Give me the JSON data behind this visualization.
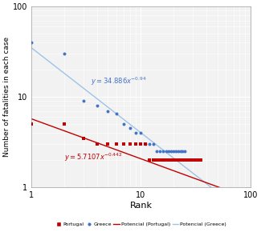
{
  "title": "",
  "xlabel": "Rank",
  "ylabel": "Number of fatalities in each case",
  "xlim": [
    1,
    100
  ],
  "ylim": [
    1,
    100
  ],
  "portugal_x": [
    1,
    2,
    3,
    4,
    5,
    6,
    7,
    8,
    9,
    10,
    11,
    12,
    13,
    14,
    15,
    16,
    17,
    18,
    19,
    20,
    21,
    22,
    23,
    24,
    25,
    26,
    27,
    28,
    29,
    30,
    31,
    32,
    33,
    34,
    35
  ],
  "portugal_y": [
    5,
    5,
    3.5,
    3,
    3,
    3,
    3,
    3,
    3,
    3,
    3,
    2,
    2,
    2,
    2,
    2,
    2,
    2,
    2,
    2,
    2,
    2,
    2,
    2,
    2,
    2,
    2,
    2,
    2,
    2,
    2,
    2,
    2,
    2,
    2
  ],
  "greece_x": [
    1,
    2,
    3,
    4,
    5,
    6,
    7,
    8,
    9,
    10,
    11,
    12,
    13,
    14,
    15,
    16,
    17,
    18,
    19,
    20,
    21,
    22,
    23,
    24,
    25
  ],
  "greece_y": [
    40,
    30,
    9,
    8,
    7,
    6.5,
    5,
    4.5,
    4,
    4,
    3,
    3,
    3,
    2.5,
    2.5,
    2.5,
    2.5,
    2.5,
    2.5,
    2.5,
    2.5,
    2.5,
    2.5,
    2.5,
    2.5
  ],
  "pot_portugal_a": 5.7107,
  "pot_portugal_b": -0.442,
  "pot_greece_a": 34.886,
  "pot_greece_b": -0.94,
  "portugal_color": "#c00000",
  "greece_color": "#4472c4",
  "pot_portugal_color": "#c00000",
  "pot_greece_color": "#9dc3e6",
  "legend_labels": [
    "Portugal",
    "Greece",
    "Potencial (Portugal)",
    "Potencial (Greece)"
  ],
  "background_color": "#f2f2f2",
  "grid_color": "#ffffff",
  "plot_area_color": "#f2f2f2"
}
